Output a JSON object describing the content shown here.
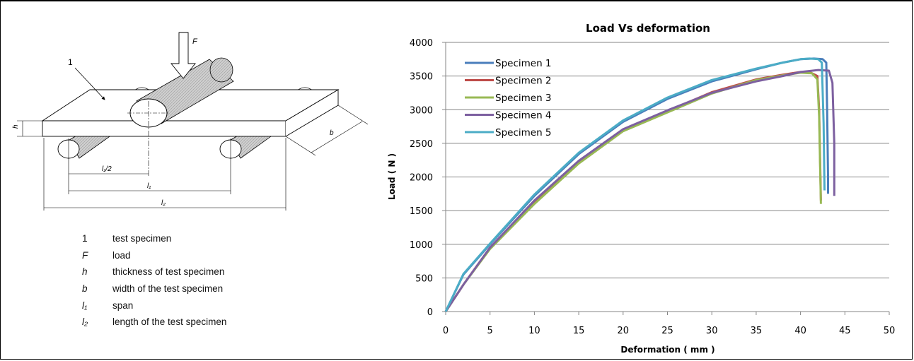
{
  "figure_legend": [
    {
      "symbol": "1",
      "italic": false,
      "description": "test specimen"
    },
    {
      "symbol": "F",
      "italic": true,
      "description": "load"
    },
    {
      "symbol": "h",
      "italic": true,
      "description": "thickness of test specimen"
    },
    {
      "symbol": "b",
      "italic": true,
      "description": "width of the test specimen"
    },
    {
      "symbol": "l₁",
      "italic": true,
      "description": "span"
    },
    {
      "symbol": "l₂",
      "italic": true,
      "description": "length of the test specimen"
    }
  ],
  "diagram_labels": {
    "specimen_callout": "1",
    "load": "F",
    "thickness": "h",
    "width": "b",
    "half_span": "l₁/2",
    "span": "l₁",
    "length": "l₂"
  },
  "chart_data": {
    "type": "line",
    "title": "Load Vs deformation",
    "xlabel": "Deformation ( mm )",
    "ylabel": "Load ( N )",
    "xlim": [
      0,
      50
    ],
    "ylim": [
      0,
      4000
    ],
    "xticks": [
      0,
      5,
      10,
      15,
      20,
      25,
      30,
      35,
      40,
      45,
      50
    ],
    "yticks": [
      0,
      500,
      1000,
      1500,
      2000,
      2500,
      3000,
      3500,
      4000
    ],
    "grid": "horizontal",
    "legend_position": "top-left",
    "series": [
      {
        "name": "Specimen 1",
        "color": "#4A7EBB",
        "x": [
          0,
          2,
          5,
          10,
          15,
          20,
          25,
          30,
          35,
          38,
          40,
          41.5,
          42.5,
          42.9,
          43.0,
          43.1,
          43.1
        ],
        "y": [
          0,
          550,
          1000,
          1720,
          2340,
          2820,
          3160,
          3420,
          3600,
          3700,
          3750,
          3760,
          3750,
          3700,
          3000,
          2000,
          1750
        ]
      },
      {
        "name": "Specimen 2",
        "color": "#BE4B48",
        "x": [
          0,
          2,
          5,
          10,
          15,
          20,
          25,
          30,
          35,
          38,
          40,
          41,
          41.9,
          42.1,
          42.2,
          42.3
        ],
        "y": [
          0,
          400,
          950,
          1640,
          2230,
          2700,
          2980,
          3260,
          3450,
          3520,
          3560,
          3560,
          3500,
          3000,
          2300,
          1650
        ]
      },
      {
        "name": "Specimen 3",
        "color": "#98B954",
        "x": [
          0,
          2,
          5,
          10,
          15,
          20,
          25,
          30,
          35,
          38,
          40,
          41.3,
          41.9,
          42.1,
          42.2,
          42.3
        ],
        "y": [
          0,
          400,
          930,
          1600,
          2200,
          2680,
          2960,
          3240,
          3440,
          3510,
          3550,
          3540,
          3450,
          2900,
          2200,
          1600
        ]
      },
      {
        "name": "Specimen 4",
        "color": "#7D60A0",
        "x": [
          0,
          2,
          5,
          10,
          15,
          20,
          25,
          30,
          35,
          38,
          40,
          42,
          43.2,
          43.6,
          43.8,
          43.8
        ],
        "y": [
          0,
          400,
          950,
          1650,
          2240,
          2710,
          2990,
          3250,
          3420,
          3500,
          3560,
          3590,
          3580,
          3400,
          2500,
          1720
        ]
      },
      {
        "name": "Specimen 5",
        "color": "#4BACC6",
        "x": [
          0,
          2,
          5,
          10,
          15,
          20,
          25,
          30,
          35,
          38,
          40,
          41,
          42,
          42.4,
          42.6,
          42.7
        ],
        "y": [
          0,
          560,
          1010,
          1740,
          2360,
          2840,
          3180,
          3440,
          3610,
          3700,
          3750,
          3760,
          3750,
          3700,
          2800,
          1800
        ]
      }
    ]
  }
}
